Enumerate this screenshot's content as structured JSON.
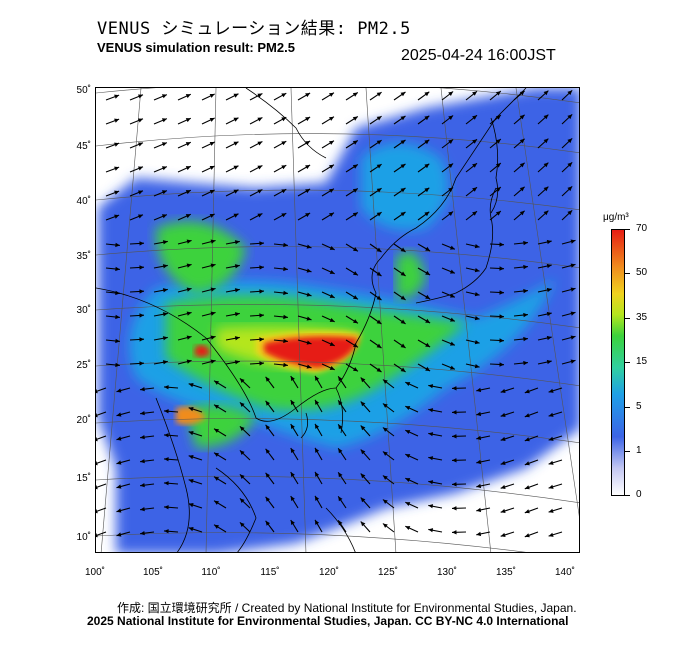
{
  "title_jp": "VENUS シミュレーション結果: PM2.5",
  "title_en": "VENUS simulation result: PM2.5",
  "timestamp": "2025-04-24 16:00JST",
  "latitude_labels": [
    "50˚",
    "45˚",
    "40˚",
    "35˚",
    "30˚",
    "25˚",
    "20˚",
    "15˚",
    "10˚"
  ],
  "longitude_labels": [
    "100˚",
    "105˚",
    "110˚",
    "115˚",
    "120˚",
    "125˚",
    "130˚",
    "135˚",
    "140˚"
  ],
  "colorbar": {
    "unit": "μg/m³",
    "ticks": [
      "70",
      "50",
      "35",
      "15",
      "5",
      "1",
      "0"
    ]
  },
  "credit_jp": "作成: 国立環境研究所 / Created by National Institute for Environmental Studies, Japan.",
  "credit_en": "2025 National Institute for Environmental Studies, Japan. CC BY-NC 4.0 International",
  "colors": {
    "very_high": "#e61e14",
    "high": "#f08c1e",
    "moderate": "#3cd23c",
    "low": "#1fa0e6",
    "very_low": "#3c64e6",
    "land_line": "#000000"
  }
}
